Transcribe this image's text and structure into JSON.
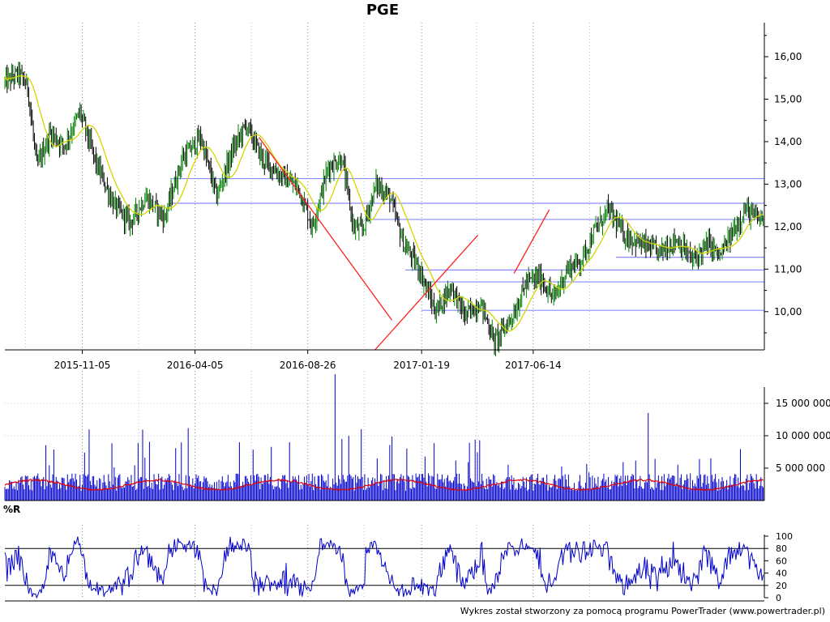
{
  "chart_data": [
    {
      "type": "candlestick",
      "title": "PGE",
      "dates": [
        "2015-11-05",
        "2016-04-05",
        "2016-08-26",
        "2017-01-19",
        "2017-06-14"
      ],
      "ylim": [
        9.1,
        16.8
      ],
      "yticks": [
        "10,00",
        "11,00",
        "12,00",
        "13,00",
        "14,00",
        "15,00",
        "16,00"
      ],
      "ytick_values": [
        10,
        11,
        12,
        13,
        14,
        15,
        16
      ],
      "close_profile": [
        [
          0,
          15.4
        ],
        [
          12,
          15.6
        ],
        [
          20,
          15.3
        ],
        [
          28,
          13.4
        ],
        [
          40,
          14.2
        ],
        [
          52,
          13.9
        ],
        [
          66,
          14.7
        ],
        [
          80,
          13.5
        ],
        [
          96,
          12.5
        ],
        [
          110,
          12.1
        ],
        [
          124,
          12.7
        ],
        [
          140,
          12.2
        ],
        [
          156,
          13.6
        ],
        [
          172,
          14.1
        ],
        [
          186,
          12.7
        ],
        [
          200,
          13.8
        ],
        [
          212,
          14.4
        ],
        [
          226,
          13.6
        ],
        [
          242,
          13.2
        ],
        [
          258,
          12.9
        ],
        [
          270,
          12.0
        ],
        [
          284,
          13.4
        ],
        [
          296,
          13.6
        ],
        [
          306,
          12.0
        ],
        [
          314,
          11.9
        ],
        [
          326,
          13.0
        ],
        [
          338,
          12.7
        ],
        [
          350,
          11.6
        ],
        [
          364,
          11.0
        ],
        [
          378,
          10.0
        ],
        [
          392,
          10.6
        ],
        [
          404,
          9.9
        ],
        [
          418,
          10.2
        ],
        [
          430,
          9.3
        ],
        [
          436,
          9.5
        ],
        [
          448,
          10.0
        ],
        [
          458,
          10.7
        ],
        [
          470,
          10.8
        ],
        [
          482,
          10.3
        ],
        [
          494,
          11.0
        ],
        [
          506,
          11.2
        ],
        [
          518,
          11.9
        ],
        [
          530,
          12.4
        ],
        [
          544,
          11.8
        ],
        [
          558,
          11.6
        ],
        [
          574,
          11.4
        ],
        [
          590,
          11.7
        ],
        [
          604,
          11.2
        ],
        [
          618,
          11.6
        ],
        [
          628,
          11.3
        ],
        [
          640,
          11.9
        ],
        [
          650,
          12.4
        ],
        [
          660,
          12.2
        ],
        [
          666,
          12.2
        ]
      ],
      "trend_lines": [
        {
          "color": "#ff2020",
          "points": [
            [
              "2016-06-22",
              14.1
            ],
            [
              "2016-12-12",
              9.8
            ]
          ]
        },
        {
          "color": "#ff2020",
          "points": [
            [
              "2016-11-20",
              9.1
            ],
            [
              "2017-04-03",
              11.8
            ]
          ]
        },
        {
          "color": "#ff2020",
          "points": [
            [
              "2017-05-20",
              10.9
            ],
            [
              "2017-07-05",
              12.4
            ]
          ]
        }
      ],
      "horizontal_levels": [
        {
          "value": 13.13,
          "color": "#8a8aff"
        },
        {
          "value": 12.55,
          "color": "#8a8aff"
        },
        {
          "value": 12.17,
          "color": "#8a8aff"
        },
        {
          "value": 11.28,
          "color": "#8a8aff"
        },
        {
          "value": 10.98,
          "color": "#8a8aff"
        },
        {
          "value": 10.7,
          "color": "#8a8aff"
        },
        {
          "value": 10.03,
          "color": "#8a8aff"
        }
      ],
      "moving_average_color": "#d4d400",
      "candle_color": "#000000",
      "up_wick_color": "#008000"
    },
    {
      "type": "bar",
      "ylim": [
        0,
        20000000
      ],
      "yticks": [
        "5 000 000",
        "10 000 000",
        "15 000 000"
      ],
      "ytick_values": [
        5000000,
        10000000,
        15000000
      ],
      "bar_color": "#0000cc",
      "average_color": "#e00000",
      "volume_base": 3000000
    },
    {
      "type": "line",
      "title": "%R",
      "ylim": [
        0,
        100
      ],
      "yticks": [
        "0",
        "20",
        "40",
        "60",
        "80",
        "100"
      ],
      "ytick_values": [
        0,
        20,
        40,
        60,
        80,
        100
      ],
      "reference_lines": [
        20,
        80
      ],
      "line_color": "#0000cc"
    }
  ],
  "footer": "Wykres został stworzony za pomocą programu PowerTrader (www.powertrader.pl)"
}
